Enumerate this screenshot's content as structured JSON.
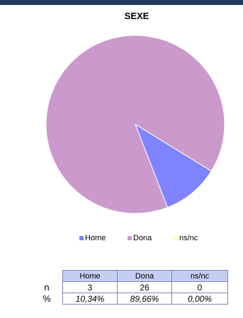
{
  "chart_data": {
    "type": "pie",
    "title": "SEXE",
    "categories": [
      "Home",
      "Dona",
      "ns/nc"
    ],
    "values": [
      3,
      26,
      0
    ],
    "percent_labels": [
      "10,34%",
      "89,66%",
      "0,00%"
    ],
    "colors": [
      "#8083ff",
      "#cc99cc",
      "#ffffcc"
    ],
    "legend_position": "bottom"
  },
  "table": {
    "headers": [
      "Home",
      "Dona",
      "ns/nc"
    ],
    "rows": [
      {
        "label": "n",
        "values": [
          "3",
          "26",
          "0"
        ]
      },
      {
        "label": "%",
        "values": [
          "10,34%",
          "89,66%",
          "0,00%"
        ]
      }
    ]
  }
}
